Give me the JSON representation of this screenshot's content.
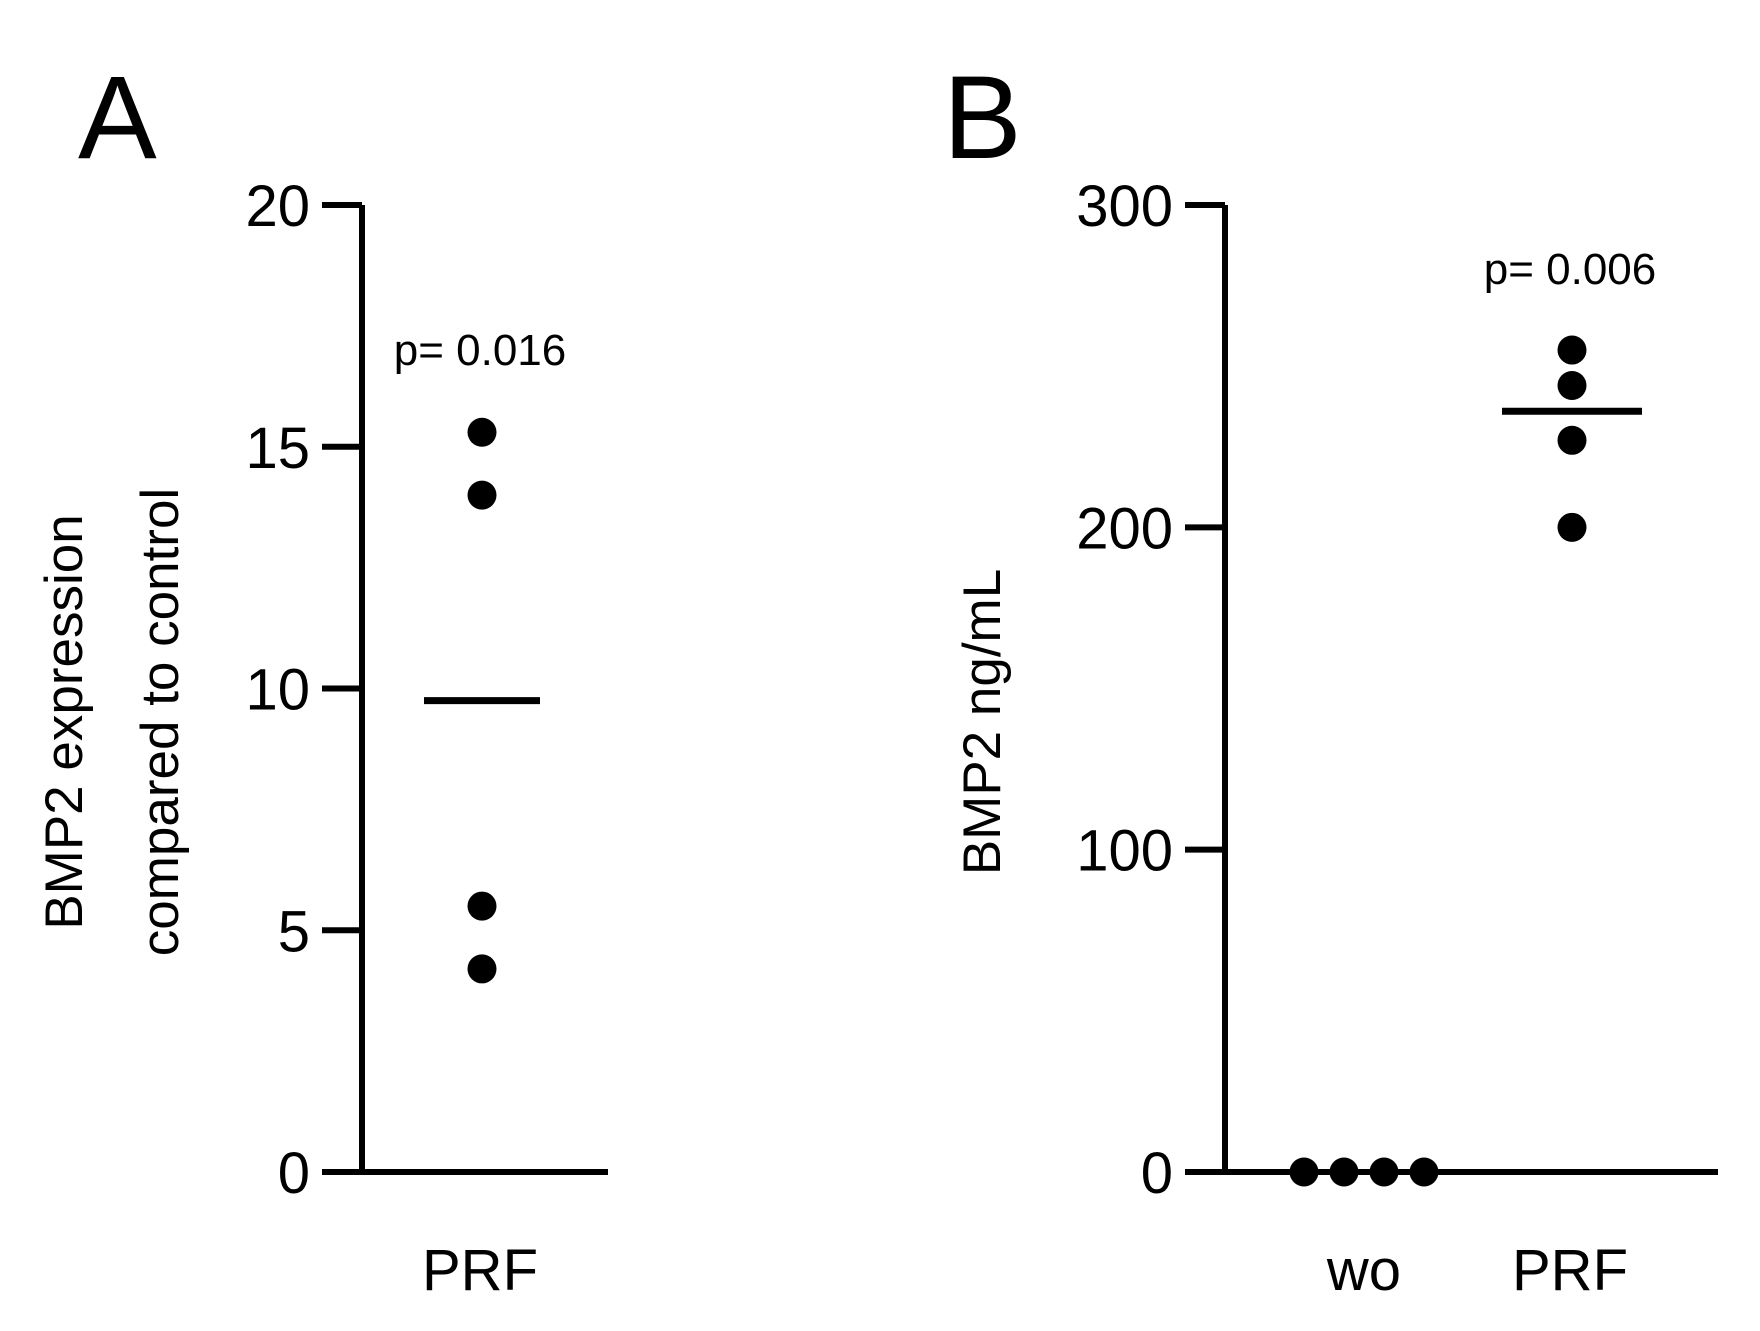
{
  "chart_data": [
    {
      "type": "scatter",
      "panel_label": "A",
      "ylabel_lines": [
        "BMP2 expression",
        "compared to control"
      ],
      "categories": [
        "PRF"
      ],
      "ylim": [
        0,
        20
      ],
      "yticks": [
        0,
        5,
        10,
        15,
        20
      ],
      "series": [
        {
          "category": "PRF",
          "values": [
            15.3,
            14.0,
            5.5,
            4.2
          ],
          "mean": 9.75
        }
      ],
      "annotations": [
        {
          "category": "PRF",
          "text": "p= 0.016"
        }
      ],
      "grid": false
    },
    {
      "type": "scatter",
      "panel_label": "B",
      "ylabel": "BMP2 ng/mL",
      "categories": [
        "wo",
        "PRF"
      ],
      "ylim": [
        0,
        300
      ],
      "yticks": [
        0,
        100,
        200,
        300
      ],
      "series": [
        {
          "category": "wo",
          "values": [
            0,
            0,
            0,
            0
          ]
        },
        {
          "category": "PRF",
          "values": [
            255,
            244,
            227,
            200
          ],
          "mean": 236
        }
      ],
      "annotations": [
        {
          "category": "PRF",
          "text": "p= 0.006"
        }
      ],
      "grid": false
    }
  ]
}
